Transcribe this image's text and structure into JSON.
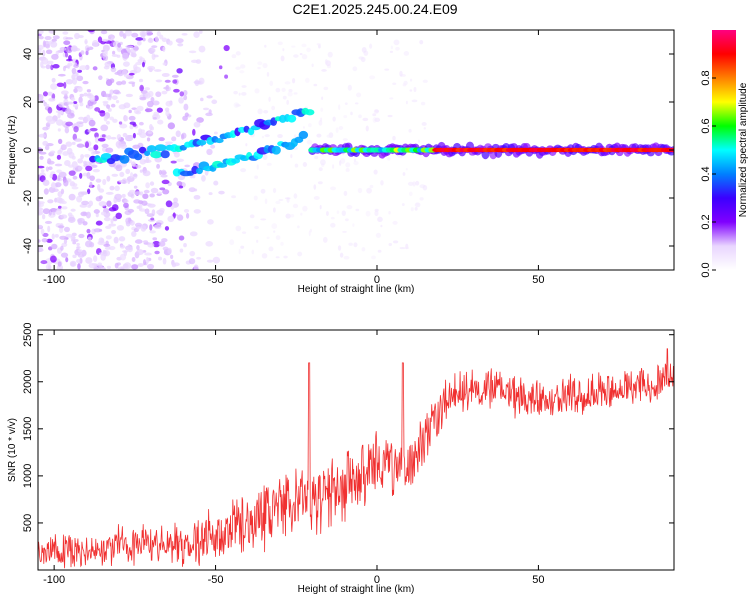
{
  "title": "C2E1.2025.245.00.24.E09",
  "chart_data": [
    {
      "type": "heatmap",
      "title": "C2E1.2025.245.00.24.E09",
      "xlabel": "Height of straight line (km)",
      "ylabel": "Frequency (Hz)",
      "xlim": [
        -105,
        92
      ],
      "ylim": [
        -50,
        50
      ],
      "xticks": [
        -100,
        -50,
        0,
        50
      ],
      "yticks": [
        -40,
        -20,
        0,
        20,
        40
      ],
      "colorbar": {
        "label": "Normalized spectral amplitude",
        "range": [
          0,
          1
        ],
        "ticks": [
          "0.0",
          "0.2",
          "0.4",
          "0.6",
          "0.8"
        ],
        "tick_values": [
          0,
          0.2,
          0.4,
          0.6,
          0.8
        ],
        "colors": [
          "#ffffff",
          "#e9d5ff",
          "#8000ff",
          "#3b00ff",
          "#0080ff",
          "#00ffff",
          "#00ff00",
          "#ffff00",
          "#ff8000",
          "#ff0000",
          "#ff0080"
        ]
      },
      "features": [
        {
          "name": "noise",
          "x_range": [
            -105,
            -45
          ],
          "y_range": [
            -50,
            50
          ],
          "amplitude": 0.08
        },
        {
          "name": "rising-branch-upper",
          "x": [
            -88,
            -70,
            -55,
            -40,
            -30,
            -20
          ],
          "y": [
            -4,
            -1,
            3,
            8,
            13,
            17
          ],
          "amplitude": 0.3
        },
        {
          "name": "rising-branch-lower",
          "x": [
            -62,
            -50,
            -40,
            -30,
            -22
          ],
          "y": [
            -10,
            -7,
            -3,
            2,
            5
          ],
          "amplitude": 0.3
        },
        {
          "name": "main-line",
          "x_range": [
            -20,
            92
          ],
          "y": 0,
          "amplitude": 0.9
        }
      ]
    },
    {
      "type": "line",
      "xlabel": "Height of straight line (km)",
      "ylabel": "SNR (10 * v/v)",
      "xlim": [
        -105,
        92
      ],
      "ylim": [
        0,
        2550
      ],
      "xticks": [
        -100,
        -50,
        0,
        50
      ],
      "yticks": [
        500,
        1000,
        1500,
        2000,
        2500
      ],
      "series": [
        {
          "name": "SNR",
          "color": "#f03030",
          "x_trend": [
            -105,
            -90,
            -75,
            -60,
            -50,
            -40,
            -30,
            -20,
            -10,
            0,
            5,
            10,
            15,
            20,
            25,
            30,
            40,
            50,
            60,
            70,
            80,
            92
          ],
          "y_trend": [
            180,
            230,
            260,
            300,
            380,
            520,
            650,
            720,
            900,
            1100,
            1050,
            1150,
            1400,
            1750,
            1900,
            1950,
            1900,
            1800,
            1850,
            1900,
            1950,
            2050
          ],
          "amplitude_trend": [
            130,
            150,
            160,
            180,
            220,
            280,
            320,
            300,
            300,
            280,
            260,
            250,
            230,
            200,
            190,
            180,
            170,
            160,
            170,
            170,
            170,
            180
          ],
          "spikes": [
            {
              "x": -21,
              "y": 2200
            },
            {
              "x": 8,
              "y": 2200
            },
            {
              "x": 90,
              "y": 2350
            }
          ]
        }
      ]
    }
  ]
}
